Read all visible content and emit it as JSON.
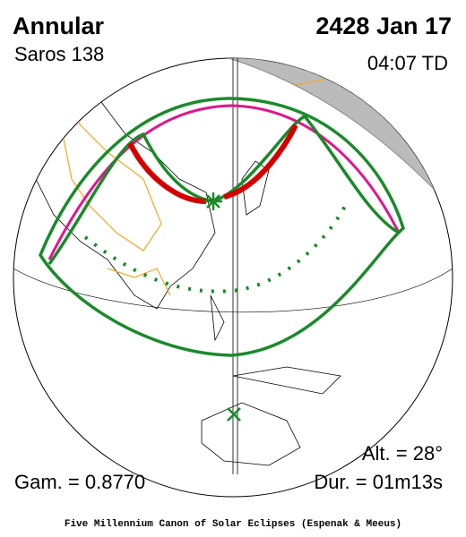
{
  "header": {
    "title": "Annular",
    "saros": "Saros 138",
    "date": "2428 Jan 17",
    "time": "04:07 TD"
  },
  "stats": {
    "altitude": "Alt. = 28°",
    "gamma": "Gam. = 0.8770",
    "duration": "Dur. = 01m13s"
  },
  "footer": "Five Millennium Canon of Solar Eclipses (Espenak & Meeus)"
}
